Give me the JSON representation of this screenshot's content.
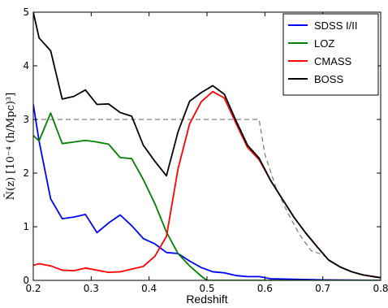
{
  "chart_data": {
    "type": "line",
    "xlabel": "Redshift",
    "ylabel": "N̄(z) [10⁻⁴ (h/Mpc)³]",
    "xlim": [
      0.2,
      0.8
    ],
    "ylim": [
      0,
      5
    ],
    "x_ticks": [
      "0.2",
      "0.3",
      "0.4",
      "0.5",
      "0.6",
      "0.7",
      "0.8"
    ],
    "y_ticks": [
      "0",
      "1",
      "2",
      "3",
      "4",
      "5"
    ],
    "grid": false,
    "legend_position": "top-right",
    "series": [
      {
        "name": "SDSS I/II",
        "color": "#0000ff",
        "x": [
          0.2,
          0.21,
          0.23,
          0.25,
          0.27,
          0.29,
          0.31,
          0.33,
          0.35,
          0.37,
          0.39,
          0.41,
          0.43,
          0.45,
          0.47,
          0.49,
          0.51,
          0.53,
          0.55,
          0.57,
          0.59,
          0.61,
          0.65,
          0.7,
          0.8
        ],
        "y": [
          3.28,
          2.6,
          1.52,
          1.15,
          1.18,
          1.23,
          0.89,
          1.07,
          1.22,
          1.02,
          0.78,
          0.68,
          0.52,
          0.5,
          0.36,
          0.24,
          0.16,
          0.14,
          0.09,
          0.07,
          0.07,
          0.03,
          0.02,
          0.01,
          0.0
        ]
      },
      {
        "name": "LOZ",
        "color": "#008000",
        "x": [
          0.2,
          0.21,
          0.23,
          0.25,
          0.27,
          0.29,
          0.31,
          0.33,
          0.35,
          0.37,
          0.39,
          0.41,
          0.43,
          0.45,
          0.47,
          0.49,
          0.5,
          0.8
        ],
        "y": [
          2.7,
          2.6,
          3.12,
          2.55,
          2.58,
          2.61,
          2.58,
          2.54,
          2.29,
          2.27,
          1.88,
          1.43,
          0.9,
          0.5,
          0.27,
          0.08,
          0.0,
          0.0
        ]
      },
      {
        "name": "CMASS",
        "color": "#ff0000",
        "x": [
          0.2,
          0.21,
          0.23,
          0.25,
          0.27,
          0.29,
          0.31,
          0.33,
          0.35,
          0.37,
          0.39,
          0.41,
          0.43,
          0.45,
          0.47,
          0.49,
          0.51,
          0.53,
          0.55,
          0.57,
          0.59,
          0.61,
          0.63,
          0.65,
          0.67,
          0.69,
          0.71,
          0.73,
          0.75,
          0.77,
          0.8
        ],
        "y": [
          0.28,
          0.31,
          0.27,
          0.19,
          0.18,
          0.23,
          0.19,
          0.15,
          0.16,
          0.21,
          0.26,
          0.45,
          0.82,
          2.08,
          2.92,
          3.33,
          3.52,
          3.4,
          2.93,
          2.48,
          2.25,
          1.86,
          1.52,
          1.18,
          0.89,
          0.63,
          0.38,
          0.25,
          0.16,
          0.1,
          0.05
        ]
      },
      {
        "name": "BOSS",
        "color": "#000000",
        "x": [
          0.2,
          0.21,
          0.23,
          0.25,
          0.27,
          0.29,
          0.31,
          0.33,
          0.35,
          0.37,
          0.39,
          0.41,
          0.43,
          0.45,
          0.47,
          0.49,
          0.51,
          0.53,
          0.55,
          0.57,
          0.59,
          0.61,
          0.63,
          0.65,
          0.67,
          0.69,
          0.71,
          0.73,
          0.75,
          0.77,
          0.8
        ],
        "y": [
          5.0,
          4.52,
          4.28,
          3.38,
          3.43,
          3.55,
          3.28,
          3.29,
          3.13,
          3.06,
          2.52,
          2.22,
          1.95,
          2.77,
          3.34,
          3.5,
          3.63,
          3.47,
          2.98,
          2.52,
          2.28,
          1.86,
          1.52,
          1.18,
          0.89,
          0.63,
          0.38,
          0.25,
          0.16,
          0.1,
          0.05
        ]
      },
      {
        "name": "",
        "color": "#808080",
        "dashed": true,
        "x": [
          0.2,
          0.59,
          0.6,
          0.62,
          0.64,
          0.66,
          0.68,
          0.7,
          0.72,
          0.74,
          0.76,
          0.78,
          0.8
        ],
        "y": [
          3.0,
          3.0,
          2.35,
          1.7,
          1.25,
          0.85,
          0.55,
          0.48,
          0.3,
          0.2,
          0.12,
          0.08,
          0.04
        ]
      }
    ]
  }
}
